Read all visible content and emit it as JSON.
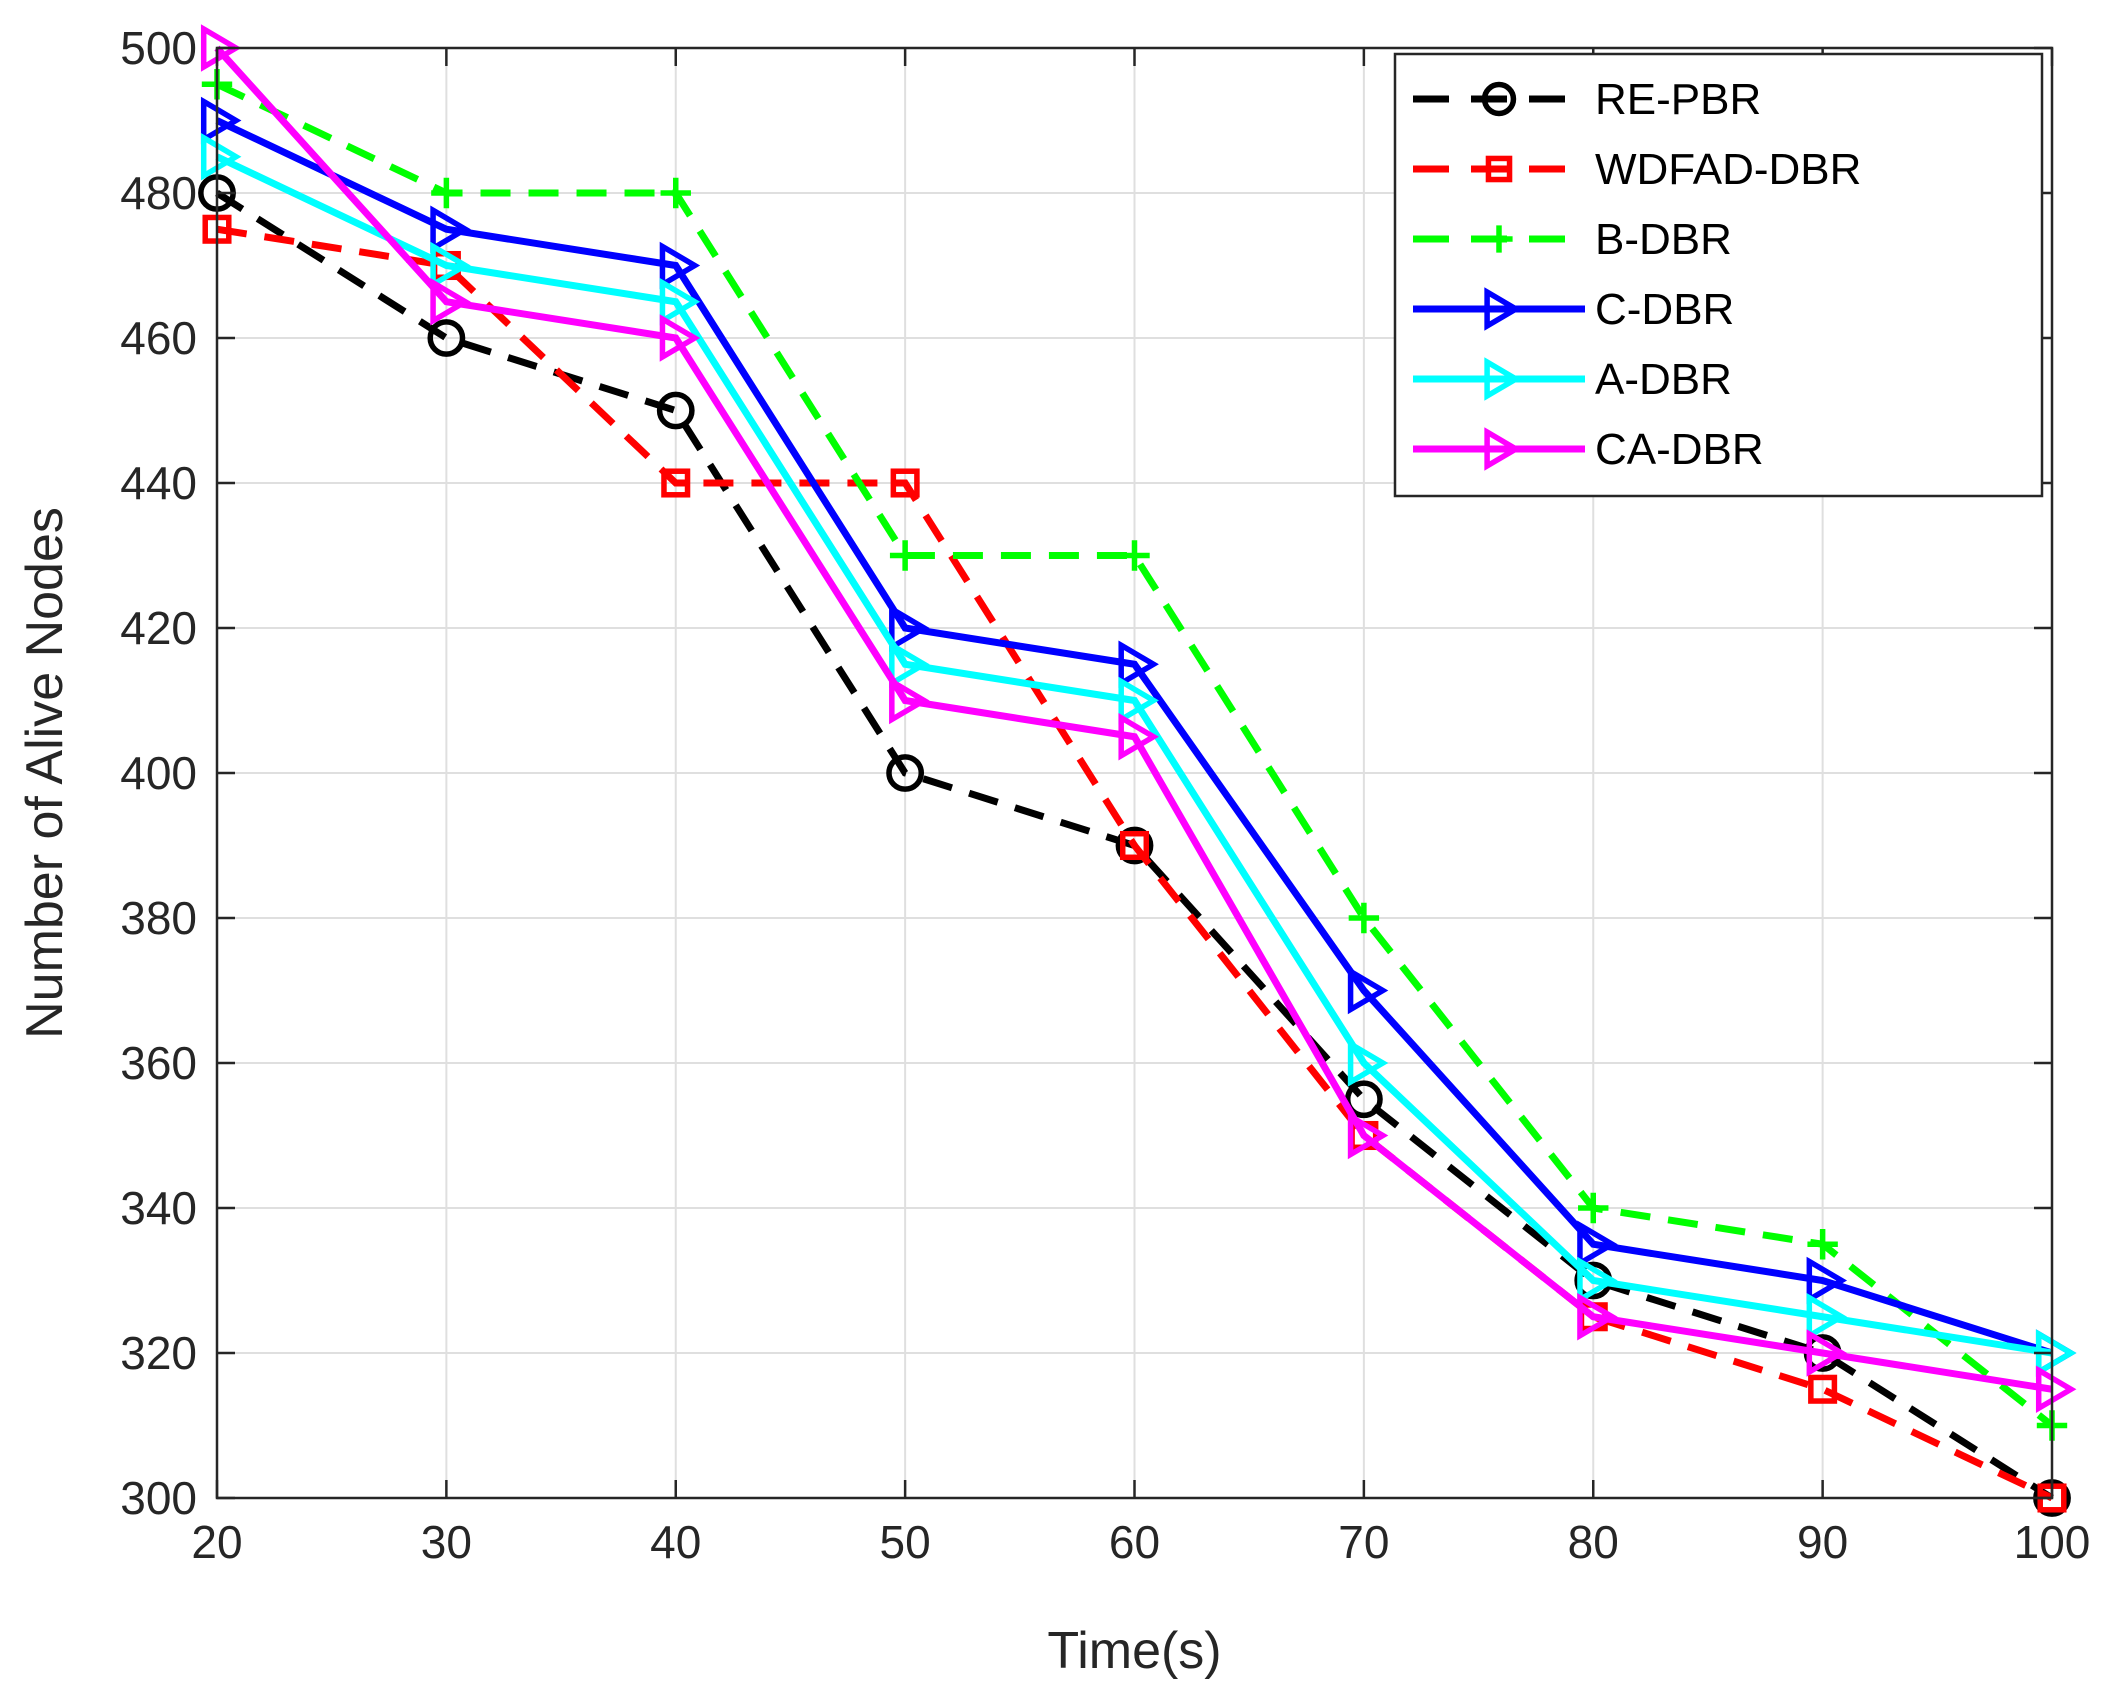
{
  "chart_data": {
    "type": "line",
    "title": "",
    "xlabel": "Time(s)",
    "ylabel": "Number of Alive Nodes",
    "xlim": [
      20,
      100
    ],
    "ylim": [
      300,
      500
    ],
    "xticks": [
      20,
      30,
      40,
      50,
      60,
      70,
      80,
      90,
      100
    ],
    "yticks": [
      300,
      320,
      340,
      360,
      380,
      400,
      420,
      440,
      460,
      480,
      500
    ],
    "grid": true,
    "legend_position": "top-right",
    "x": [
      20,
      30,
      40,
      50,
      60,
      70,
      80,
      90,
      100
    ],
    "series": [
      {
        "name": "RE-PBR",
        "color": "#000000",
        "line": "dashed",
        "marker": "circle",
        "values": [
          480,
          460,
          450,
          400,
          390,
          355,
          330,
          320,
          300
        ]
      },
      {
        "name": "WDFAD-DBR",
        "color": "#ff0000",
        "line": "dashed",
        "marker": "square",
        "values": [
          475,
          470,
          440,
          440,
          390,
          350,
          325,
          315,
          300
        ]
      },
      {
        "name": "B-DBR",
        "color": "#00ff00",
        "line": "dashed",
        "marker": "plus",
        "values": [
          495,
          480,
          480,
          430,
          430,
          380,
          340,
          335,
          310
        ]
      },
      {
        "name": "C-DBR",
        "color": "#0000ff",
        "line": "solid",
        "marker": "triangle-right",
        "values": [
          490,
          475,
          470,
          420,
          415,
          370,
          335,
          330,
          320
        ]
      },
      {
        "name": "A-DBR",
        "color": "#00ffff",
        "line": "solid",
        "marker": "triangle-right",
        "values": [
          485,
          470,
          465,
          415,
          410,
          360,
          330,
          325,
          320
        ]
      },
      {
        "name": "CA-DBR",
        "color": "#ff00ff",
        "line": "solid",
        "marker": "triangle-right",
        "values": [
          500,
          465,
          460,
          410,
          405,
          350,
          325,
          320,
          315
        ]
      }
    ]
  }
}
